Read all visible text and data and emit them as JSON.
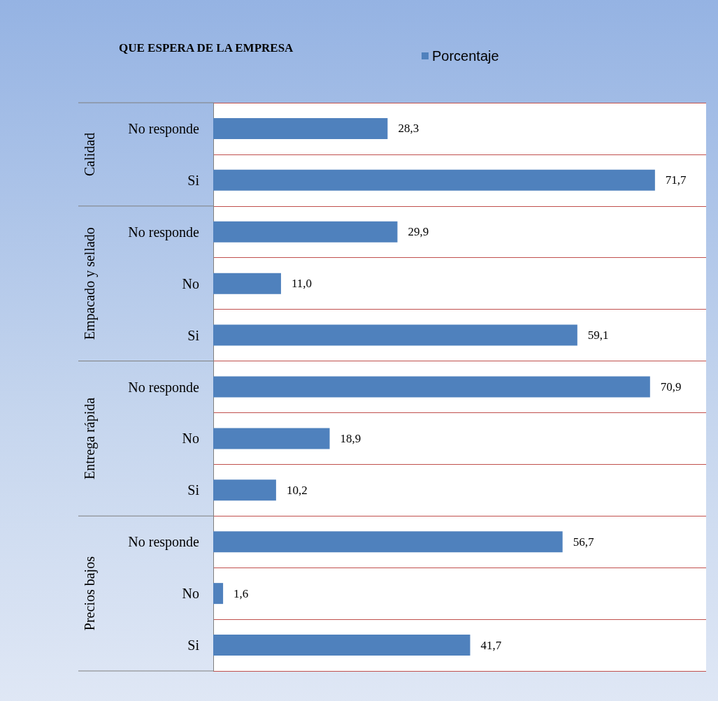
{
  "chart_data": {
    "type": "bar",
    "orientation": "horizontal",
    "title": "QUE ESPERA DE LA EMPRESA",
    "categories": [
      "No responde",
      "Si",
      "No responde",
      "No",
      "Si",
      "No responde",
      "No",
      "Si",
      "No responde",
      "No",
      "Si"
    ],
    "annotations": [
      "Calidad",
      "Empacado y sellado",
      "Entrega rápida",
      "Precios bajos"
    ],
    "series": [
      {
        "name": "Porcentaje",
        "color": "#4f81bd",
        "values": [
          28.3,
          71.7,
          29.9,
          11.0,
          59.1,
          70.9,
          18.9,
          10.2,
          56.7,
          1.6,
          41.7
        ],
        "value_labels": [
          "28,3",
          "71,7",
          "29,9",
          "11,0",
          "59,1",
          "70,9",
          "18,9",
          "10,2",
          "56,7",
          "1,6",
          "41,7"
        ]
      }
    ],
    "legend": "top",
    "grid": "y"
  }
}
